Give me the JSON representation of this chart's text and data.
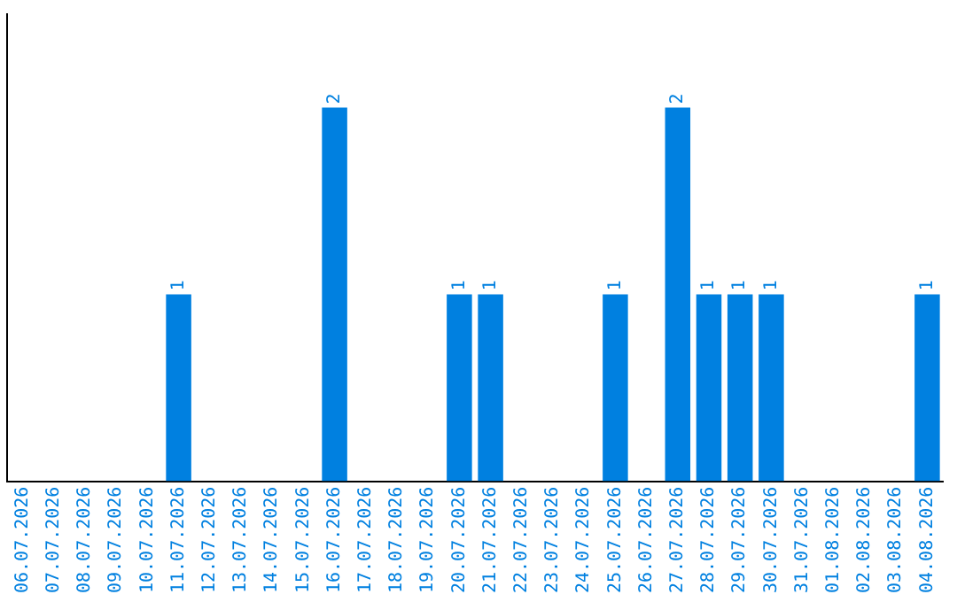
{
  "chart_data": {
    "type": "bar",
    "categories": [
      "06.07.2026",
      "07.07.2026",
      "08.07.2026",
      "09.07.2026",
      "10.07.2026",
      "11.07.2026",
      "12.07.2026",
      "13.07.2026",
      "14.07.2026",
      "15.07.2026",
      "16.07.2026",
      "17.07.2026",
      "18.07.2026",
      "19.07.2026",
      "20.07.2026",
      "21.07.2026",
      "22.07.2026",
      "23.07.2026",
      "24.07.2026",
      "25.07.2026",
      "26.07.2026",
      "27.07.2026",
      "28.07.2026",
      "29.07.2026",
      "30.07.2026",
      "31.07.2026",
      "01.08.2026",
      "02.08.2026",
      "03.08.2026",
      "04.08.2026"
    ],
    "values": [
      0,
      0,
      0,
      0,
      0,
      1,
      0,
      0,
      0,
      0,
      2,
      0,
      0,
      0,
      1,
      1,
      0,
      0,
      0,
      1,
      0,
      2,
      1,
      1,
      1,
      0,
      0,
      0,
      0,
      1
    ],
    "value_labels": [
      null,
      null,
      null,
      null,
      null,
      "1",
      null,
      null,
      null,
      null,
      "2",
      null,
      null,
      null,
      "1",
      "1",
      null,
      null,
      null,
      "1",
      null,
      "2",
      "1",
      "1",
      "1",
      null,
      null,
      null,
      null,
      "1"
    ],
    "color": "#0080e0",
    "tick_labels": "x",
    "grid": false,
    "legend": false
  }
}
